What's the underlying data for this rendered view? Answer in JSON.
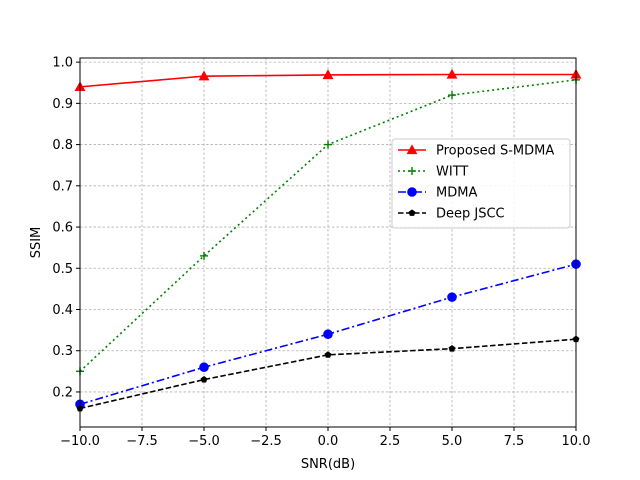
{
  "chart_data": {
    "type": "line",
    "title": "",
    "xlabel": "SNR(dB)",
    "ylabel": "SSIM",
    "xlim": [
      -10,
      10
    ],
    "ylim": [
      0.115,
      1.01
    ],
    "xticks": [
      -10,
      -7.5,
      -5,
      -2.5,
      0,
      2.5,
      5,
      7.5,
      10
    ],
    "xtick_labels": [
      "−10.0",
      "−7.5",
      "−5.0",
      "−2.5",
      "0.0",
      "2.5",
      "5.0",
      "7.5",
      "10.0"
    ],
    "yticks": [
      0.2,
      0.3,
      0.4,
      0.5,
      0.6,
      0.7,
      0.8,
      0.9,
      1.0
    ],
    "ytick_labels": [
      "0.2",
      "0.3",
      "0.4",
      "0.5",
      "0.6",
      "0.7",
      "0.8",
      "0.9",
      "1.0"
    ],
    "grid": true,
    "legend_position": "center-right",
    "x": [
      -10,
      -5,
      0,
      5,
      10
    ],
    "series": [
      {
        "name": "Proposed S-MDMA",
        "values": [
          0.94,
          0.966,
          0.969,
          0.97,
          0.97
        ],
        "color": "#ff0000",
        "linestyle": "solid",
        "marker": "triangle"
      },
      {
        "name": "WITT",
        "values": [
          0.25,
          0.53,
          0.8,
          0.92,
          0.957
        ],
        "color": "#008000",
        "linestyle": "dotted",
        "marker": "plus"
      },
      {
        "name": "MDMA",
        "values": [
          0.17,
          0.26,
          0.34,
          0.43,
          0.51
        ],
        "color": "#0000ff",
        "linestyle": "dashdot",
        "marker": "circle"
      },
      {
        "name": "Deep JSCC",
        "values": [
          0.16,
          0.23,
          0.29,
          0.305,
          0.328
        ],
        "color": "#000000",
        "linestyle": "dashed",
        "marker": "pentagon"
      }
    ]
  }
}
